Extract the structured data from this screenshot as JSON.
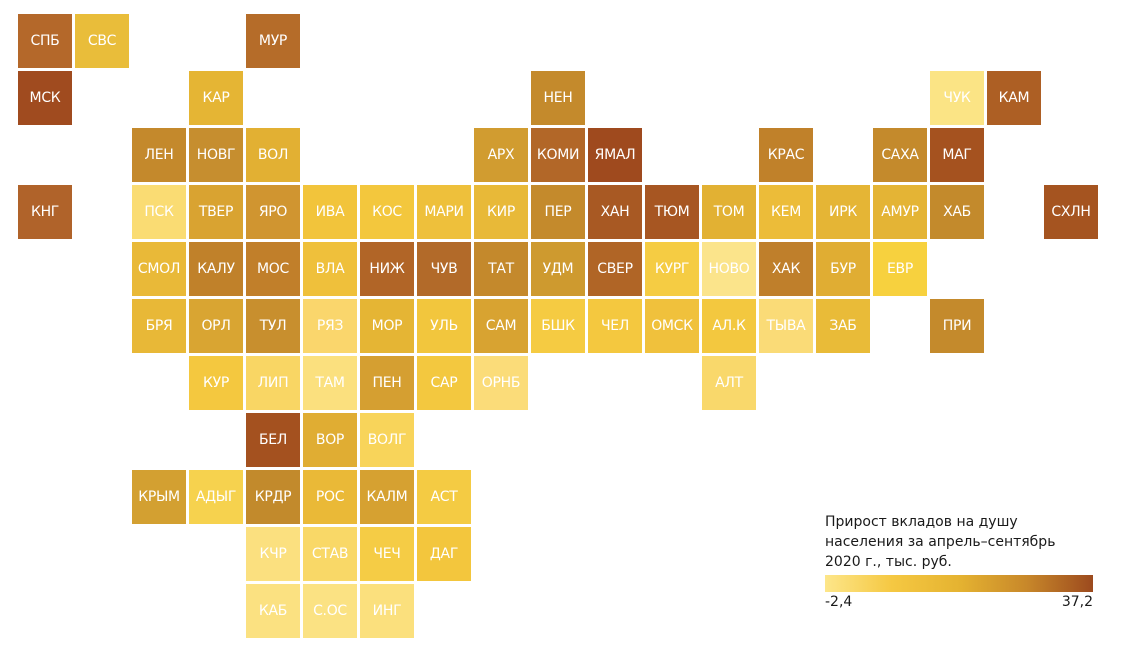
{
  "chart_data": {
    "type": "tile-map",
    "title": "Прирост вкладов на душу населения за апрель–сентябрь 2020 г., тыс. руб.",
    "scale": {
      "min": -2.4,
      "max": 37.2,
      "min_label": "-2,4",
      "max_label": "37,2",
      "colors": [
        "#fde68a",
        "#f5c842",
        "#e5b331",
        "#c8882a",
        "#9c4a1e"
      ]
    },
    "regions": [
      {
        "label": "СПБ",
        "col": 0,
        "row": 0,
        "color": "#b4682a"
      },
      {
        "label": "СВС",
        "col": 1,
        "row": 0,
        "color": "#e9bd3a"
      },
      {
        "label": "МУР",
        "col": 4,
        "row": 0,
        "color": "#b56c29"
      },
      {
        "label": "МСК",
        "col": 0,
        "row": 1,
        "color": "#a04b1f"
      },
      {
        "label": "КАР",
        "col": 3,
        "row": 1,
        "color": "#e5b534"
      },
      {
        "label": "НЕН",
        "col": 9,
        "row": 1,
        "color": "#c48a2c"
      },
      {
        "label": "ЧУК",
        "col": 16,
        "row": 1,
        "color": "#fbe485"
      },
      {
        "label": "КАМ",
        "col": 17,
        "row": 1,
        "color": "#ad5f24"
      },
      {
        "label": "ЛЕН",
        "col": 2,
        "row": 2,
        "color": "#c4892c"
      },
      {
        "label": "НОВГ",
        "col": 3,
        "row": 2,
        "color": "#c68e2f"
      },
      {
        "label": "ВОЛ",
        "col": 4,
        "row": 2,
        "color": "#e2b033"
      },
      {
        "label": "АРХ",
        "col": 8,
        "row": 2,
        "color": "#d19c30"
      },
      {
        "label": "КОМИ",
        "col": 9,
        "row": 2,
        "color": "#b26728"
      },
      {
        "label": "ЯМАЛ",
        "col": 10,
        "row": 2,
        "color": "#9f4a1e"
      },
      {
        "label": "КРАС",
        "col": 13,
        "row": 2,
        "color": "#c0812a"
      },
      {
        "label": "САХА",
        "col": 15,
        "row": 2,
        "color": "#c48a2c"
      },
      {
        "label": "МАГ",
        "col": 16,
        "row": 2,
        "color": "#a5521f"
      },
      {
        "label": "КНГ",
        "col": 0,
        "row": 3,
        "color": "#b0632a"
      },
      {
        "label": "ПСК",
        "col": 2,
        "row": 3,
        "color": "#fadc73"
      },
      {
        "label": "ТВЕР",
        "col": 3,
        "row": 3,
        "color": "#d9a331"
      },
      {
        "label": "ЯРО",
        "col": 4,
        "row": 3,
        "color": "#d09530"
      },
      {
        "label": "ИВА",
        "col": 5,
        "row": 3,
        "color": "#f2c43b"
      },
      {
        "label": "КОС",
        "col": 6,
        "row": 3,
        "color": "#f3c73d"
      },
      {
        "label": "МАРИ",
        "col": 7,
        "row": 3,
        "color": "#eec03b"
      },
      {
        "label": "КИР",
        "col": 8,
        "row": 3,
        "color": "#e8b938"
      },
      {
        "label": "ПЕР",
        "col": 9,
        "row": 3,
        "color": "#c48a2c"
      },
      {
        "label": "ХАН",
        "col": 10,
        "row": 3,
        "color": "#a85923"
      },
      {
        "label": "ТЮМ",
        "col": 11,
        "row": 3,
        "color": "#a75622"
      },
      {
        "label": "ТОМ",
        "col": 12,
        "row": 3,
        "color": "#e2b133"
      },
      {
        "label": "КЕМ",
        "col": 13,
        "row": 3,
        "color": "#ecbc39"
      },
      {
        "label": "ИРК",
        "col": 14,
        "row": 3,
        "color": "#e5b535"
      },
      {
        "label": "АМУР",
        "col": 15,
        "row": 3,
        "color": "#e4b435"
      },
      {
        "label": "ХАБ",
        "col": 16,
        "row": 3,
        "color": "#c38a2c"
      },
      {
        "label": "СХЛН",
        "col": 18,
        "row": 3,
        "color": "#a55420"
      },
      {
        "label": "СМОЛ",
        "col": 2,
        "row": 4,
        "color": "#e9b938"
      },
      {
        "label": "КАЛУ",
        "col": 3,
        "row": 4,
        "color": "#c0812a"
      },
      {
        "label": "МОС",
        "col": 4,
        "row": 4,
        "color": "#c17f2a"
      },
      {
        "label": "ВЛА",
        "col": 5,
        "row": 4,
        "color": "#efc03b"
      },
      {
        "label": "НИЖ",
        "col": 6,
        "row": 4,
        "color": "#b16527"
      },
      {
        "label": "ЧУВ",
        "col": 7,
        "row": 4,
        "color": "#b26a29"
      },
      {
        "label": "ТАТ",
        "col": 8,
        "row": 4,
        "color": "#c4892c"
      },
      {
        "label": "УДМ",
        "col": 9,
        "row": 4,
        "color": "#ce9a2f"
      },
      {
        "label": "СВЕР",
        "col": 10,
        "row": 4,
        "color": "#b06526"
      },
      {
        "label": "КУРГ",
        "col": 11,
        "row": 4,
        "color": "#f5cc43"
      },
      {
        "label": "НОВО",
        "col": 12,
        "row": 4,
        "color": "#fbe48b"
      },
      {
        "label": "ХАК",
        "col": 13,
        "row": 4,
        "color": "#bf7f2b"
      },
      {
        "label": "БУР",
        "col": 14,
        "row": 4,
        "color": "#e0ad33"
      },
      {
        "label": "ЕВР",
        "col": 15,
        "row": 4,
        "color": "#f7d13e"
      },
      {
        "label": "БРЯ",
        "col": 2,
        "row": 5,
        "color": "#e8b837"
      },
      {
        "label": "ОРЛ",
        "col": 3,
        "row": 5,
        "color": "#d9a532"
      },
      {
        "label": "ТУЛ",
        "col": 4,
        "row": 5,
        "color": "#c88f2e"
      },
      {
        "label": "РЯЗ",
        "col": 5,
        "row": 5,
        "color": "#fad66c"
      },
      {
        "label": "МОР",
        "col": 6,
        "row": 5,
        "color": "#e5b534"
      },
      {
        "label": "УЛЬ",
        "col": 7,
        "row": 5,
        "color": "#f2c63d"
      },
      {
        "label": "САМ",
        "col": 8,
        "row": 5,
        "color": "#d8a331"
      },
      {
        "label": "БШК",
        "col": 9,
        "row": 5,
        "color": "#f5cb42"
      },
      {
        "label": "ЧЕЛ",
        "col": 10,
        "row": 5,
        "color": "#f4c83f"
      },
      {
        "label": "ОМСК",
        "col": 11,
        "row": 5,
        "color": "#f0c13c"
      },
      {
        "label": "АЛ.К",
        "col": 12,
        "row": 5,
        "color": "#f3c83f"
      },
      {
        "label": "ТЫВА",
        "col": 13,
        "row": 5,
        "color": "#fadb77"
      },
      {
        "label": "ЗАБ",
        "col": 14,
        "row": 5,
        "color": "#e9bb38"
      },
      {
        "label": "ПРИ",
        "col": 16,
        "row": 5,
        "color": "#c48a2c"
      },
      {
        "label": "КУР",
        "col": 3,
        "row": 6,
        "color": "#f4c83f"
      },
      {
        "label": "ЛИП",
        "col": 4,
        "row": 6,
        "color": "#f9d664"
      },
      {
        "label": "ТАМ",
        "col": 5,
        "row": 6,
        "color": "#fbe07e"
      },
      {
        "label": "ПЕН",
        "col": 6,
        "row": 6,
        "color": "#d59f31"
      },
      {
        "label": "САР",
        "col": 7,
        "row": 6,
        "color": "#f3c83f"
      },
      {
        "label": "ОРНБ",
        "col": 8,
        "row": 6,
        "color": "#fbdc79"
      },
      {
        "label": "АЛТ",
        "col": 12,
        "row": 6,
        "color": "#f9d86b"
      },
      {
        "label": "БЕЛ",
        "col": 4,
        "row": 7,
        "color": "#a4511f"
      },
      {
        "label": "ВОР",
        "col": 5,
        "row": 7,
        "color": "#e0ad33"
      },
      {
        "label": "ВОЛГ",
        "col": 6,
        "row": 7,
        "color": "#f8d45a"
      },
      {
        "label": "КРЫМ",
        "col": 2,
        "row": 8,
        "color": "#d3a031"
      },
      {
        "label": "АДЫГ",
        "col": 3,
        "row": 8,
        "color": "#f6d24e"
      },
      {
        "label": "КРДР",
        "col": 4,
        "row": 8,
        "color": "#c28a2c"
      },
      {
        "label": "РОС",
        "col": 5,
        "row": 8,
        "color": "#eab937"
      },
      {
        "label": "КАЛМ",
        "col": 6,
        "row": 8,
        "color": "#d6a131"
      },
      {
        "label": "АСТ",
        "col": 7,
        "row": 8,
        "color": "#f4cb43"
      },
      {
        "label": "КЧР",
        "col": 4,
        "row": 9,
        "color": "#fbe07f"
      },
      {
        "label": "СТАВ",
        "col": 5,
        "row": 9,
        "color": "#f9d867"
      },
      {
        "label": "ЧЕЧ",
        "col": 6,
        "row": 9,
        "color": "#f5cc45"
      },
      {
        "label": "ДАГ",
        "col": 7,
        "row": 9,
        "color": "#f3c63d"
      },
      {
        "label": "КАБ",
        "col": 4,
        "row": 10,
        "color": "#fbe181"
      },
      {
        "label": "С.ОС",
        "col": 5,
        "row": 10,
        "color": "#fbe283"
      },
      {
        "label": "ИНГ",
        "col": 6,
        "row": 10,
        "color": "#fbe07d"
      }
    ]
  },
  "legend": {
    "title_lines": [
      "Прирост вкладов на душу",
      "населения за апрель–сентябрь",
      "2020 г., тыс. руб."
    ],
    "min_label": "-2,4",
    "max_label": "37,2"
  }
}
